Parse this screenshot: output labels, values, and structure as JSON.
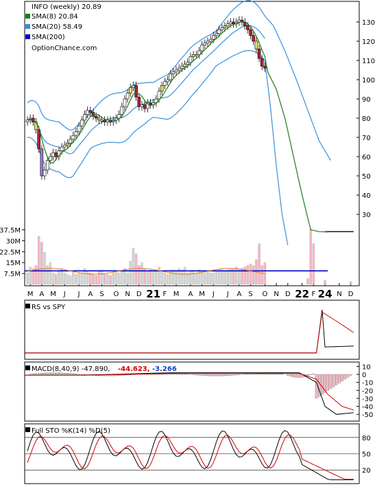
{
  "chart_data": {
    "type": "candlestick",
    "ticker_title": "INFO (weekly) 20.89",
    "attribution": "OptionChance.com",
    "legend": [
      {
        "label": "SMA(8) 20.84",
        "color": "#1a7a1a"
      },
      {
        "label": "SMA(20) 58.49",
        "color": "#3a8fd8"
      },
      {
        "label": "SMA(200)",
        "color": "#0000cc"
      }
    ],
    "price_axis": {
      "ticks": [
        30,
        40,
        50,
        60,
        70,
        80,
        90,
        100,
        110,
        120,
        130
      ],
      "ylim": [
        20,
        140
      ]
    },
    "volume_axis": {
      "ticks": [
        "37.5M",
        "30M",
        "22.5M",
        "15M",
        "7.5M"
      ],
      "values": [
        37.5,
        30,
        22.5,
        15,
        7.5
      ],
      "ylim": [
        0,
        42
      ]
    },
    "x_labels": [
      {
        "t": "M",
        "w": 1,
        "bold": false
      },
      {
        "t": "A",
        "w": 5,
        "bold": false
      },
      {
        "t": "M",
        "w": 9,
        "bold": false
      },
      {
        "t": "J",
        "w": 13,
        "bold": false
      },
      {
        "t": "J",
        "w": 18,
        "bold": false
      },
      {
        "t": "A",
        "w": 22,
        "bold": false
      },
      {
        "t": "S",
        "w": 26,
        "bold": false
      },
      {
        "t": "O",
        "w": 31,
        "bold": false
      },
      {
        "t": "N",
        "w": 35,
        "bold": false
      },
      {
        "t": "D",
        "w": 39,
        "bold": false
      },
      {
        "t": "21",
        "w": 44,
        "bold": true
      },
      {
        "t": "F",
        "w": 48,
        "bold": false
      },
      {
        "t": "M",
        "w": 52,
        "bold": false
      },
      {
        "t": "A",
        "w": 57,
        "bold": false
      },
      {
        "t": "M",
        "w": 61,
        "bold": false
      },
      {
        "t": "J",
        "w": 65,
        "bold": false
      },
      {
        "t": "J",
        "w": 70,
        "bold": false
      },
      {
        "t": "A",
        "w": 74,
        "bold": false
      },
      {
        "t": "S",
        "w": 78,
        "bold": false
      },
      {
        "t": "O",
        "w": 83,
        "bold": false
      },
      {
        "t": "N",
        "w": 87,
        "bold": false
      },
      {
        "t": "D",
        "w": 91,
        "bold": false
      },
      {
        "t": "22",
        "w": 96,
        "bold": true
      },
      {
        "t": "F",
        "w": 100,
        "bold": false
      },
      {
        "t": "24",
        "w": 104,
        "bold": true
      },
      {
        "t": "N",
        "w": 109,
        "bold": false
      },
      {
        "t": "D",
        "w": 113,
        "bold": false
      }
    ],
    "series": {
      "close": [
        79,
        80,
        78,
        74,
        64,
        50,
        53,
        58,
        60,
        62,
        60,
        63,
        65,
        66,
        67,
        69,
        71,
        73,
        76,
        79,
        82,
        84,
        83,
        81,
        80,
        79,
        79,
        78,
        79,
        78,
        79,
        80,
        82,
        86,
        90,
        93,
        96,
        97,
        91,
        86,
        87,
        85,
        88,
        87,
        88,
        90,
        94,
        97,
        99,
        100,
        103,
        104,
        105,
        106,
        107,
        108,
        109,
        112,
        113,
        113,
        115,
        118,
        119,
        120,
        121,
        123,
        124,
        126,
        127,
        128,
        129,
        130,
        129,
        130,
        131,
        130,
        128,
        126,
        123,
        120,
        116,
        111,
        107,
        106
      ],
      "volume": [
        8,
        12,
        11,
        13,
        33,
        29,
        22,
        13,
        15,
        8,
        7,
        9,
        11,
        8,
        7,
        6,
        9,
        7,
        8,
        8,
        11,
        9,
        8,
        7,
        6,
        9,
        10,
        7,
        7,
        6,
        8,
        9,
        8,
        10,
        11,
        8,
        16,
        25,
        21,
        13,
        15,
        11,
        9,
        10,
        9,
        10,
        12,
        9,
        8,
        7,
        9,
        10,
        9,
        11,
        10,
        12,
        8,
        9,
        9,
        8,
        10,
        9,
        8,
        9,
        8,
        8,
        9,
        10,
        10,
        9,
        10,
        11,
        11,
        12,
        10,
        11,
        12,
        13,
        14,
        13,
        17,
        28,
        13,
        15
      ],
      "sma8_tail": [
        104,
        95,
        80,
        60,
        40,
        22,
        21,
        20.8
      ],
      "sma20_upper_tail": [
        128,
        115,
        100,
        84,
        68,
        58
      ],
      "sma20_lower_tail": [
        85,
        55,
        30,
        14
      ],
      "post_gap_close": 21,
      "avg_volume": 9,
      "sma200_volume_line": 9.3
    },
    "indicators": {
      "rs": {
        "label": "RS vs SPY"
      },
      "macd": {
        "label": "MACD(8,40,9) -47.890,",
        "value2": "-44.623,",
        "value3": "-3.266",
        "ticks": [
          10,
          0,
          -10,
          -20,
          -30,
          -40,
          -50
        ],
        "ylim": [
          -55,
          12
        ]
      },
      "sto": {
        "label": "Full STO %K(14) %D(5)",
        "ticks": [
          80,
          50,
          20
        ],
        "ylim": [
          0,
          100
        ]
      }
    }
  }
}
